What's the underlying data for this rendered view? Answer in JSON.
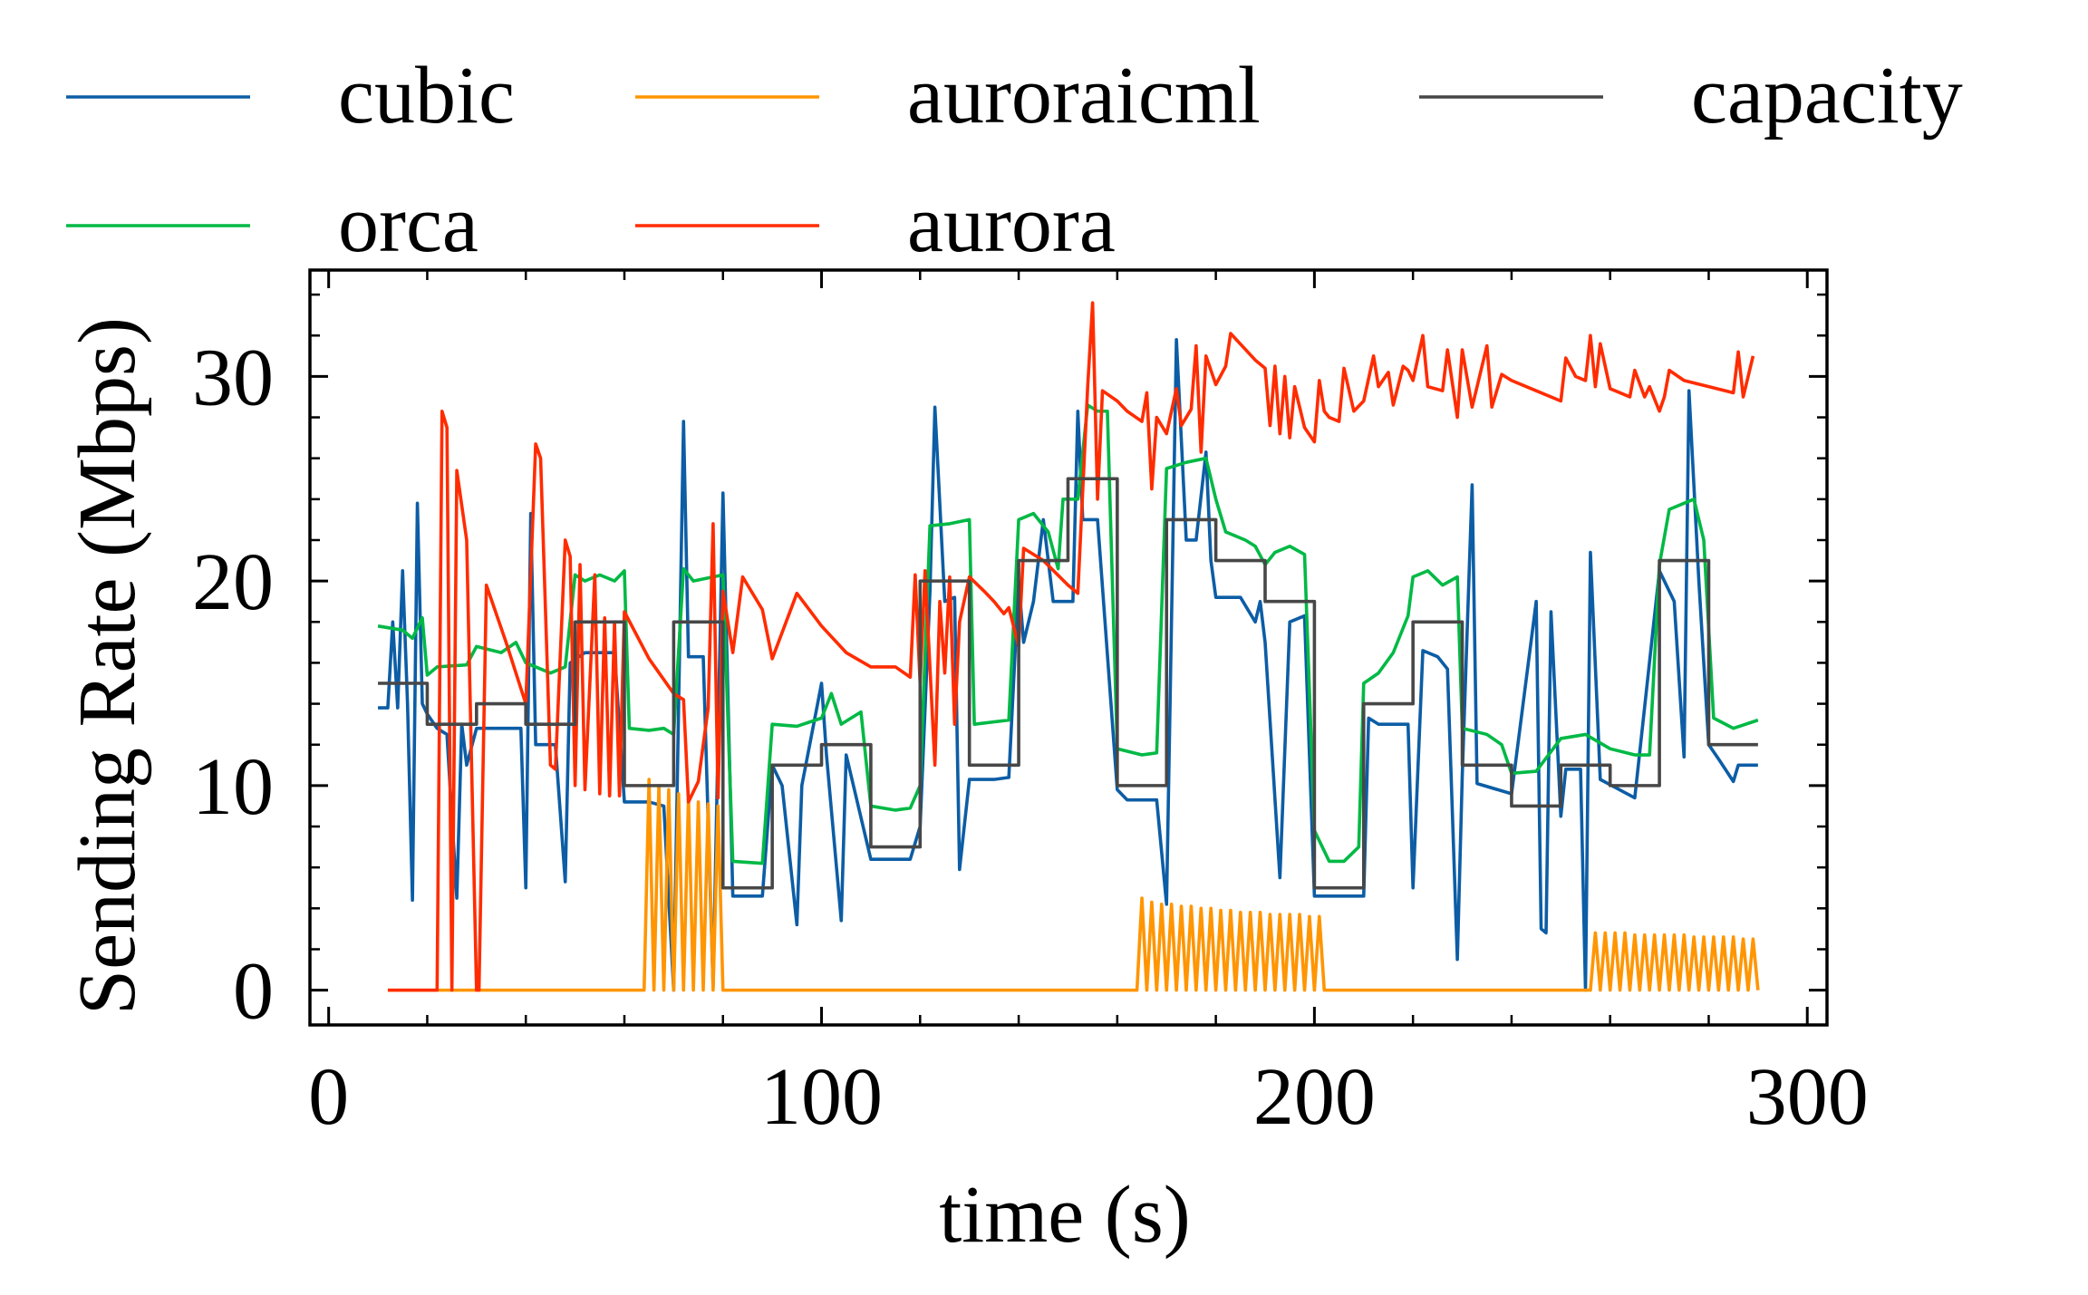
{
  "chart_data": {
    "type": "line",
    "xlabel": "time (s)",
    "ylabel": "Sending Rate (Mbps)",
    "xlim": [
      -3.8,
      304
    ],
    "ylim": [
      -1.7,
      35.2
    ],
    "xticks": [
      0,
      100,
      200,
      300
    ],
    "yticks": [
      0,
      10,
      20,
      30
    ],
    "legend": "top",
    "legend_columns": 3,
    "series": [
      {
        "name": "cubic",
        "color": "#0c5da5",
        "x": [
          10,
          12,
          13,
          14,
          15,
          16,
          17,
          18,
          19,
          20,
          22,
          24,
          26,
          27,
          28,
          30,
          35,
          39,
          40,
          41,
          42,
          46,
          48,
          49,
          52,
          58,
          60,
          65,
          68,
          70,
          72,
          73,
          76,
          78,
          80,
          82,
          88,
          90,
          92,
          95,
          96,
          100,
          101,
          104,
          105,
          110,
          115,
          118,
          120,
          122,
          123,
          125,
          127,
          128,
          130,
          135,
          138,
          140,
          141,
          143,
          145,
          147,
          150,
          151,
          152,
          153,
          156,
          160,
          162,
          168,
          170,
          172,
          174,
          176,
          178,
          179,
          180,
          185,
          188,
          189,
          190,
          193,
          195,
          198,
          200,
          205,
          210,
          211,
          213,
          219,
          220,
          222,
          225,
          227,
          229,
          230,
          232,
          233,
          240,
          245,
          246,
          247,
          248,
          250,
          251,
          254,
          255,
          256,
          258,
          265,
          270,
          273,
          275,
          276,
          278,
          280,
          282,
          285,
          286,
          290
        ],
        "values": [
          13.8,
          13.8,
          18,
          13.8,
          20.5,
          14,
          4.4,
          23.8,
          14,
          13.5,
          12.8,
          12.5,
          4.5,
          13,
          11,
          12.8,
          12.8,
          12.8,
          5,
          23.3,
          12,
          12,
          5.3,
          16,
          16.5,
          16.5,
          9.2,
          9.2,
          9,
          0,
          27.8,
          16.3,
          16.3,
          0.2,
          24.3,
          4.6,
          4.6,
          11,
          10,
          3.2,
          10,
          15,
          11.5,
          3.4,
          11.5,
          6.4,
          6.4,
          6.4,
          8,
          19.5,
          28.5,
          19,
          19.2,
          5.9,
          10.3,
          10.3,
          10.4,
          20,
          17,
          19,
          23,
          19,
          19,
          19,
          28.3,
          23,
          23,
          9.8,
          9.3,
          9.3,
          4.2,
          31.8,
          22,
          22,
          26.3,
          21,
          19.2,
          19.2,
          18,
          19,
          17,
          5.5,
          18,
          18.3,
          4.6,
          4.6,
          4.6,
          13.3,
          13,
          13,
          5,
          16.6,
          16.3,
          15.7,
          1.5,
          10.5,
          24.7,
          10.1,
          9.6,
          19,
          3,
          2.8,
          18.5,
          8.5,
          10.8,
          10.8,
          0,
          21.4,
          10.3,
          9.4,
          20.5,
          19,
          11.4,
          29.3,
          20,
          12,
          11.3,
          10.2,
          11,
          11
        ]
      },
      {
        "name": "orca",
        "color": "#00b945",
        "x": [
          10,
          15,
          17,
          19,
          20,
          22,
          28,
          30,
          35,
          38,
          40,
          45,
          48,
          50,
          52,
          55,
          58,
          60,
          61,
          65,
          68,
          70,
          72,
          74,
          80,
          82,
          88,
          90,
          95,
          100,
          102,
          104,
          108,
          110,
          115,
          118,
          120,
          122,
          126,
          130,
          131,
          138,
          140,
          143,
          146,
          148,
          149,
          152,
          154,
          156,
          158,
          160,
          165,
          168,
          170,
          174,
          178,
          180,
          182,
          186,
          188,
          190,
          192,
          195,
          198,
          200,
          203,
          206,
          209,
          210,
          213,
          216,
          219,
          220,
          223,
          226,
          229,
          230,
          235,
          238,
          240,
          245,
          250,
          255,
          260,
          265,
          268,
          270,
          272,
          275,
          277,
          279,
          281,
          285,
          290
        ],
        "values": [
          17.8,
          17.6,
          17.2,
          18.2,
          15.4,
          15.8,
          15.9,
          16.8,
          16.5,
          17,
          16,
          15.5,
          15.8,
          20.3,
          20,
          20.3,
          20,
          20.5,
          12.8,
          12.7,
          12.8,
          12.5,
          20.6,
          20,
          20.3,
          6.3,
          6.2,
          13,
          12.9,
          13.3,
          14.5,
          13,
          13.6,
          9,
          8.8,
          8.9,
          10,
          22.7,
          22.8,
          23,
          13,
          13.2,
          23,
          23.3,
          22.4,
          20.6,
          24,
          24,
          28.6,
          28.3,
          28.3,
          11.8,
          11.5,
          11.6,
          25.5,
          25.8,
          26,
          24,
          22.4,
          22,
          21.7,
          20.8,
          21.4,
          21.7,
          21.3,
          7.8,
          6.3,
          6.3,
          7,
          15,
          15.5,
          16.5,
          18.3,
          20.2,
          20.5,
          19.8,
          20.2,
          12.8,
          12.5,
          12,
          10.6,
          10.7,
          12.3,
          12.5,
          11.8,
          11.5,
          11.5,
          20.8,
          23.5,
          23.8,
          24,
          22,
          13.3,
          12.8,
          13.2
        ]
      },
      {
        "name": "auroraicml",
        "color": "#ff9500",
        "x": [
          12,
          64,
          65,
          66,
          67,
          68,
          69,
          70,
          71,
          72,
          73,
          74,
          75,
          76,
          77,
          78,
          79,
          80,
          164,
          165,
          166,
          167,
          168,
          169,
          170,
          171,
          172,
          173,
          174,
          175,
          176,
          177,
          178,
          179,
          180,
          181,
          182,
          183,
          184,
          185,
          186,
          187,
          188,
          189,
          190,
          191,
          192,
          193,
          194,
          195,
          196,
          197,
          198,
          199,
          200,
          201,
          202,
          256,
          257,
          258,
          259,
          260,
          261,
          262,
          263,
          264,
          265,
          266,
          267,
          268,
          269,
          270,
          271,
          272,
          273,
          274,
          275,
          276,
          277,
          278,
          279,
          280,
          281,
          282,
          283,
          284,
          285,
          286,
          287,
          288,
          289,
          290
        ],
        "values": [
          0,
          0,
          10.3,
          0,
          10,
          0,
          9.8,
          0,
          9.6,
          0,
          9.4,
          0,
          9.2,
          0,
          9.1,
          0,
          9,
          0,
          0,
          4.5,
          0,
          4.3,
          0,
          4.2,
          0,
          4.2,
          0,
          4.1,
          0,
          4.1,
          0,
          4,
          0,
          4,
          0,
          3.9,
          0,
          3.9,
          0,
          3.8,
          0,
          3.8,
          0,
          3.8,
          0,
          3.7,
          0,
          3.7,
          0,
          3.7,
          0,
          3.7,
          0,
          3.6,
          0,
          3.6,
          0,
          0,
          2.8,
          0,
          2.8,
          0,
          2.8,
          0,
          2.8,
          0,
          2.7,
          0,
          2.7,
          0,
          2.7,
          0,
          2.7,
          0,
          2.7,
          0,
          2.7,
          0,
          2.6,
          0,
          2.6,
          0,
          2.6,
          0,
          2.6,
          0,
          2.6,
          0,
          2.5,
          0,
          2.5,
          0
        ]
      },
      {
        "name": "aurora",
        "color": "#ff2c00",
        "x": [
          12,
          22,
          23,
          24,
          25,
          26,
          28,
          30,
          30.5,
          32,
          36,
          40,
          42,
          43,
          45,
          46,
          48,
          49,
          50,
          51,
          52,
          54,
          55,
          56,
          57,
          58,
          59,
          60,
          65,
          70,
          72,
          73,
          75,
          77,
          78,
          79,
          80,
          82,
          84,
          88,
          90,
          95,
          100,
          105,
          110,
          115,
          118,
          119,
          120,
          121,
          123,
          124,
          125,
          126,
          127,
          128,
          130,
          133,
          135,
          137,
          138,
          140,
          141,
          145,
          150,
          152,
          154,
          155,
          156,
          157,
          160,
          162,
          165,
          166,
          167,
          168,
          170,
          172,
          173,
          175,
          176,
          177,
          178,
          180,
          182,
          183,
          188,
          190,
          191,
          192,
          193,
          194,
          195,
          196,
          198,
          200,
          201,
          202,
          203,
          205,
          206,
          208,
          210,
          212,
          213,
          215,
          216,
          218,
          219,
          220,
          222,
          223,
          226,
          227,
          229,
          230,
          232,
          235,
          236,
          238,
          240,
          245,
          250,
          251,
          253,
          255,
          256,
          257,
          258,
          260,
          264,
          265,
          267,
          268,
          270,
          271,
          272,
          275,
          280,
          285,
          286,
          287,
          289
        ],
        "values": [
          0,
          0,
          28.3,
          27.5,
          0,
          25.4,
          22,
          0,
          0,
          19.8,
          17,
          14,
          26.7,
          26,
          11,
          10.8,
          22,
          21.2,
          10,
          20.8,
          9.8,
          20.3,
          9.6,
          18.2,
          9.5,
          18,
          9.5,
          18.5,
          16.2,
          14.5,
          14.2,
          9.2,
          10.2,
          13.8,
          22.8,
          9.4,
          19.5,
          16.5,
          20.2,
          18.6,
          16.2,
          19.4,
          17.8,
          16.5,
          15.8,
          15.8,
          15.3,
          20.3,
          15,
          20.5,
          11,
          19,
          15.5,
          20.2,
          13,
          18,
          20.2,
          19.5,
          19,
          18.4,
          18.7,
          16.8,
          21.6,
          21,
          19.8,
          19.4,
          29.5,
          33.6,
          24,
          29.3,
          28.8,
          28.3,
          27.8,
          29.2,
          24.5,
          28,
          27.2,
          29.4,
          27.6,
          28.4,
          31.5,
          26.3,
          31,
          29.6,
          30.5,
          32.1,
          30.8,
          30.4,
          27.6,
          30.5,
          27.2,
          30,
          27,
          29.5,
          27.5,
          26.8,
          29.8,
          28.3,
          28,
          27.8,
          30.4,
          28.3,
          28.8,
          31,
          29.5,
          30.2,
          28.6,
          30.5,
          30.3,
          29.8,
          32,
          29.5,
          29.3,
          31.3,
          28,
          31.3,
          28.5,
          31.5,
          28.5,
          30.1,
          29.8,
          29.3,
          28.8,
          30.9,
          30,
          29.8,
          32,
          29.5,
          31.6,
          29.4,
          29,
          30.3,
          29,
          29.5,
          28.3,
          29,
          30.3,
          29.8,
          29.5,
          29.2,
          31.2,
          29,
          31
        ]
      },
      {
        "name": "capacity",
        "color": "#474747",
        "x": [
          10,
          20,
          20,
          30,
          30,
          40,
          40,
          50,
          50,
          60,
          60,
          70,
          70,
          80,
          80,
          90,
          90,
          100,
          100,
          110,
          110,
          120,
          120,
          130,
          130,
          140,
          140,
          150,
          150,
          160,
          160,
          170,
          170,
          180,
          180,
          190,
          190,
          200,
          200,
          210,
          210,
          220,
          220,
          230,
          230,
          240,
          240,
          250,
          250,
          260,
          260,
          270,
          270,
          280,
          280,
          290
        ],
        "values": [
          15,
          15,
          13,
          13,
          14,
          14,
          13,
          13,
          18,
          18,
          10,
          10,
          18,
          18,
          5,
          5,
          11,
          11,
          12,
          12,
          7,
          7,
          20,
          20,
          11,
          11,
          21,
          21,
          25,
          25,
          10,
          10,
          23,
          23,
          21,
          21,
          19,
          19,
          5,
          5,
          14,
          14,
          18,
          18,
          11,
          11,
          9,
          9,
          11,
          11,
          10,
          10,
          21,
          21,
          12,
          12
        ]
      }
    ]
  }
}
